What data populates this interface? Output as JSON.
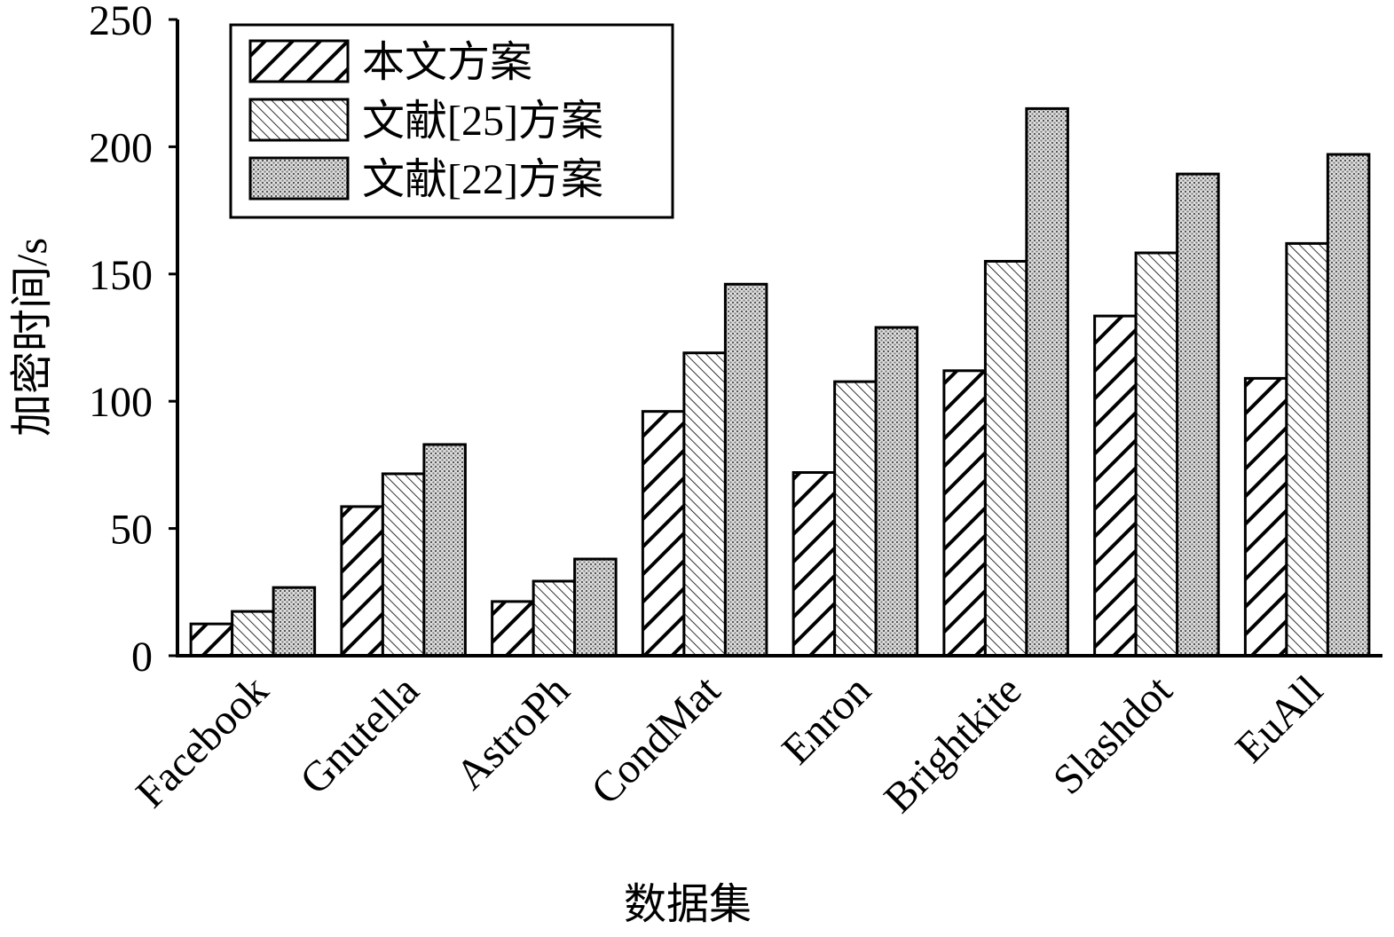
{
  "chart_data": {
    "type": "bar",
    "x_label": "数据集",
    "y_label": "加密时间/s",
    "categories": [
      "Facebook",
      "Gnutella",
      "AstroPh",
      "CondMat",
      "Enron",
      "Brightkite",
      "Slashdot",
      "EuAll"
    ],
    "series": [
      {
        "name": "本文方案",
        "color": "#000000",
        "pattern": "backslash",
        "values": [
          12.5,
          58.6,
          21.3,
          96,
          72,
          112,
          133.5,
          109
        ]
      },
      {
        "name": "文献[25]方案",
        "color": "#000000",
        "pattern": "slash",
        "values": [
          17.4,
          71.5,
          29.3,
          119,
          107.7,
          155,
          158.3,
          162
        ]
      },
      {
        "name": "文献[22]方案",
        "color": "#000000",
        "pattern": "dots",
        "values": [
          26.8,
          83,
          38,
          146,
          129,
          215,
          189.3,
          197
        ]
      }
    ],
    "ylim": [
      0,
      250
    ],
    "yticks": [
      0,
      50,
      100,
      150,
      200,
      250
    ],
    "grid": false,
    "legend": "upper left"
  }
}
